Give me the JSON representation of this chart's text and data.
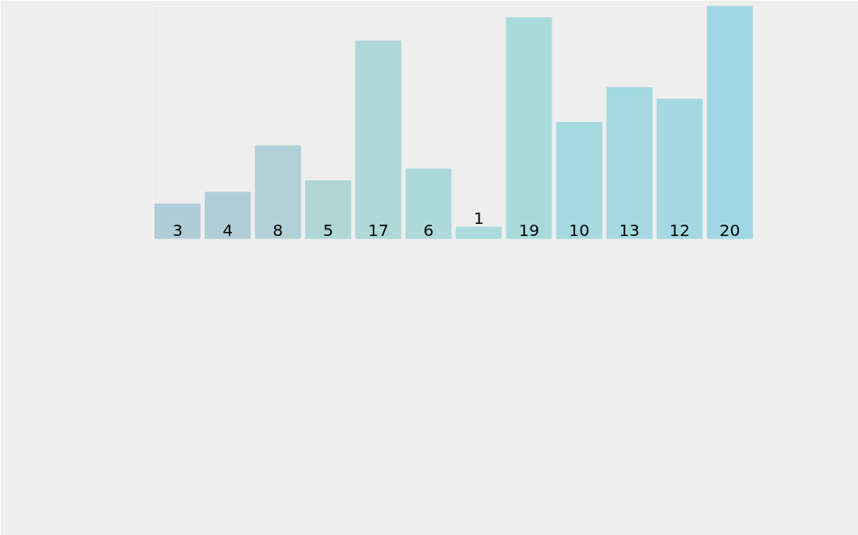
{
  "chart_data": {
    "type": "bar",
    "categories": [
      null,
      null,
      null,
      null,
      null,
      null,
      null,
      null,
      null,
      null,
      null,
      null
    ],
    "values": [
      3,
      4,
      8,
      5,
      17,
      6,
      1,
      19,
      10,
      13,
      12,
      20
    ],
    "colors": [
      "#b0ccd8",
      "#b1ced8",
      "#b2d0d7",
      "#b0d6d6",
      "#afd8d8",
      "#add9d9",
      "#aadadb",
      "#a8dadb",
      "#a5d9e0",
      "#a4d9e1",
      "#a3d8e2",
      "#a1d7e4"
    ],
    "data_labels": true
  }
}
